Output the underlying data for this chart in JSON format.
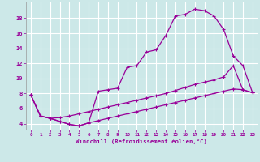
{
  "xlabel": "Windchill (Refroidissement éolien,°C)",
  "bg_color": "#cce8e8",
  "line_color": "#990099",
  "grid_color": "#ffffff",
  "x_ticks": [
    0,
    1,
    2,
    3,
    4,
    5,
    6,
    7,
    8,
    9,
    10,
    11,
    12,
    13,
    14,
    15,
    16,
    17,
    18,
    19,
    20,
    21,
    22,
    23
  ],
  "y_ticks": [
    4,
    6,
    8,
    10,
    12,
    14,
    16,
    18
  ],
  "xlim": [
    -0.5,
    23.5
  ],
  "ylim": [
    3.2,
    20.2
  ],
  "line1_x": [
    0,
    1,
    2,
    3,
    4,
    5,
    6,
    7,
    8,
    9,
    10,
    11,
    12,
    13,
    14,
    15,
    16,
    17,
    18,
    19,
    20,
    21,
    22,
    23
  ],
  "line1_y": [
    7.8,
    5.0,
    4.7,
    4.3,
    3.9,
    3.7,
    4.1,
    8.3,
    8.5,
    8.7,
    11.5,
    11.7,
    13.5,
    13.8,
    15.7,
    18.3,
    18.5,
    19.2,
    19.0,
    18.3,
    16.5,
    13.0,
    11.7,
    8.1
  ],
  "line2_x": [
    0,
    1,
    2,
    3,
    4,
    5,
    6,
    7,
    8,
    9,
    10,
    11,
    12,
    13,
    14,
    15,
    16,
    17,
    18,
    19,
    20,
    21,
    22,
    23
  ],
  "line2_y": [
    7.8,
    5.0,
    4.7,
    4.8,
    5.0,
    5.3,
    5.6,
    5.9,
    6.2,
    6.5,
    6.8,
    7.1,
    7.4,
    7.7,
    8.0,
    8.4,
    8.8,
    9.2,
    9.5,
    9.8,
    10.2,
    11.7,
    8.5,
    8.1
  ],
  "line3_x": [
    0,
    1,
    2,
    3,
    4,
    5,
    6,
    7,
    8,
    9,
    10,
    11,
    12,
    13,
    14,
    15,
    16,
    17,
    18,
    19,
    20,
    21,
    22,
    23
  ],
  "line3_y": [
    7.8,
    5.0,
    4.7,
    4.3,
    3.9,
    3.7,
    4.1,
    4.4,
    4.7,
    5.0,
    5.3,
    5.6,
    5.9,
    6.2,
    6.5,
    6.8,
    7.1,
    7.4,
    7.7,
    8.0,
    8.3,
    8.6,
    8.5,
    8.1
  ]
}
